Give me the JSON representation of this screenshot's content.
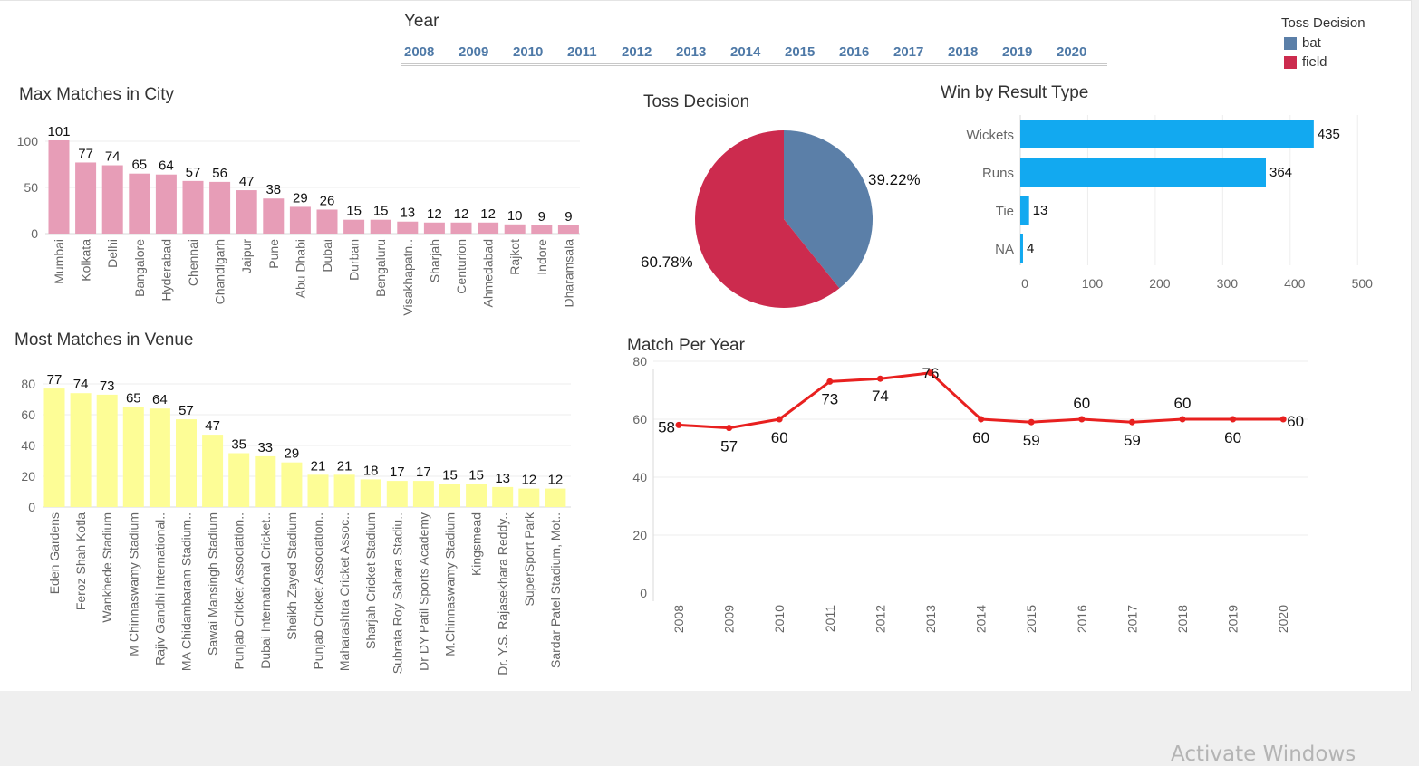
{
  "year_filter": {
    "title": "Year",
    "years": [
      "2008",
      "2009",
      "2010",
      "2011",
      "2012",
      "2013",
      "2014",
      "2015",
      "2016",
      "2017",
      "2018",
      "2019",
      "2020"
    ]
  },
  "legend": {
    "title": "Toss Decision",
    "items": [
      {
        "label": "bat",
        "color": "#5b7fa8"
      },
      {
        "label": "field",
        "color": "#cc2b4e"
      }
    ]
  },
  "charts": {
    "city": {
      "title": "Max Matches in City"
    },
    "venue": {
      "title": "Most Matches in Venue"
    },
    "toss": {
      "title": "Toss Decision"
    },
    "result": {
      "title": "Win by Result Type"
    },
    "year": {
      "title": "Match Per Year"
    }
  },
  "chart_data": [
    {
      "type": "bar",
      "title": "Max Matches in City",
      "categories": [
        "Mumbai",
        "Kolkata",
        "Delhi",
        "Bangalore",
        "Hyderabad",
        "Chennai",
        "Chandigarh",
        "Jaipur",
        "Pune",
        "Abu Dhabi",
        "Dubai",
        "Durban",
        "Bengaluru",
        "Visakhapatn..",
        "Sharjah",
        "Centurion",
        "Ahmedabad",
        "Rajkot",
        "Indore",
        "Dharamsala"
      ],
      "values": [
        101,
        77,
        74,
        65,
        64,
        57,
        56,
        47,
        38,
        29,
        26,
        15,
        15,
        13,
        12,
        12,
        12,
        10,
        9,
        9
      ],
      "yticks": [
        0,
        50,
        100
      ],
      "ylim": [
        0,
        110
      ],
      "color": "#e79db7",
      "grid": true
    },
    {
      "type": "bar",
      "title": "Most Matches in Venue",
      "categories": [
        "Eden Gardens",
        "Feroz Shah Kotla",
        "Wankhede Stadium",
        "M Chinnaswamy Stadium",
        "Rajiv Gandhi International..",
        "MA Chidambaram Stadium..",
        "Sawai Mansingh Stadium",
        "Punjab Cricket Association..",
        "Dubai International Cricket..",
        "Sheikh Zayed Stadium",
        "Punjab Cricket Association..",
        "Maharashtra Cricket Assoc..",
        "Sharjah Cricket Stadium",
        "Subrata Roy Sahara Stadiu..",
        "Dr DY Patil Sports Academy",
        "M.Chinnaswamy Stadium",
        "Kingsmead",
        "Dr. Y.S. Rajasekhara Reddy..",
        "SuperSport Park",
        "Sardar Patel Stadium, Mot.."
      ],
      "values": [
        77,
        74,
        73,
        65,
        64,
        57,
        47,
        35,
        33,
        29,
        21,
        21,
        18,
        17,
        17,
        15,
        15,
        13,
        12,
        12
      ],
      "yticks": [
        0,
        20,
        40,
        60,
        80
      ],
      "ylim": [
        0,
        80
      ],
      "color": "#fdfd96",
      "grid": true
    },
    {
      "type": "pie",
      "title": "Toss Decision",
      "categories": [
        "bat",
        "field"
      ],
      "values": [
        39.22,
        60.78
      ],
      "labels": [
        "39.22%",
        "60.78%"
      ],
      "colors": [
        "#5b7fa8",
        "#cc2b4e"
      ]
    },
    {
      "type": "bar",
      "orientation": "horizontal",
      "title": "Win by Result Type",
      "categories": [
        "Wickets",
        "Runs",
        "Tie",
        "NA"
      ],
      "values": [
        435,
        364,
        13,
        4
      ],
      "xticks": [
        0,
        100,
        200,
        300,
        400,
        500
      ],
      "xlim": [
        0,
        500
      ],
      "color": "#12a9f0",
      "grid": true
    },
    {
      "type": "line",
      "title": "Match Per Year",
      "x": [
        "2008",
        "2009",
        "2010",
        "2011",
        "2012",
        "2013",
        "2014",
        "2015",
        "2016",
        "2017",
        "2018",
        "2019",
        "2020"
      ],
      "values": [
        58,
        57,
        60,
        73,
        74,
        76,
        60,
        59,
        60,
        59,
        60,
        60,
        60
      ],
      "yticks": [
        0,
        20,
        40,
        60,
        80
      ],
      "ylim": [
        0,
        80
      ],
      "color": "#e8201f",
      "grid": true
    }
  ],
  "watermark": "Activate Windows"
}
